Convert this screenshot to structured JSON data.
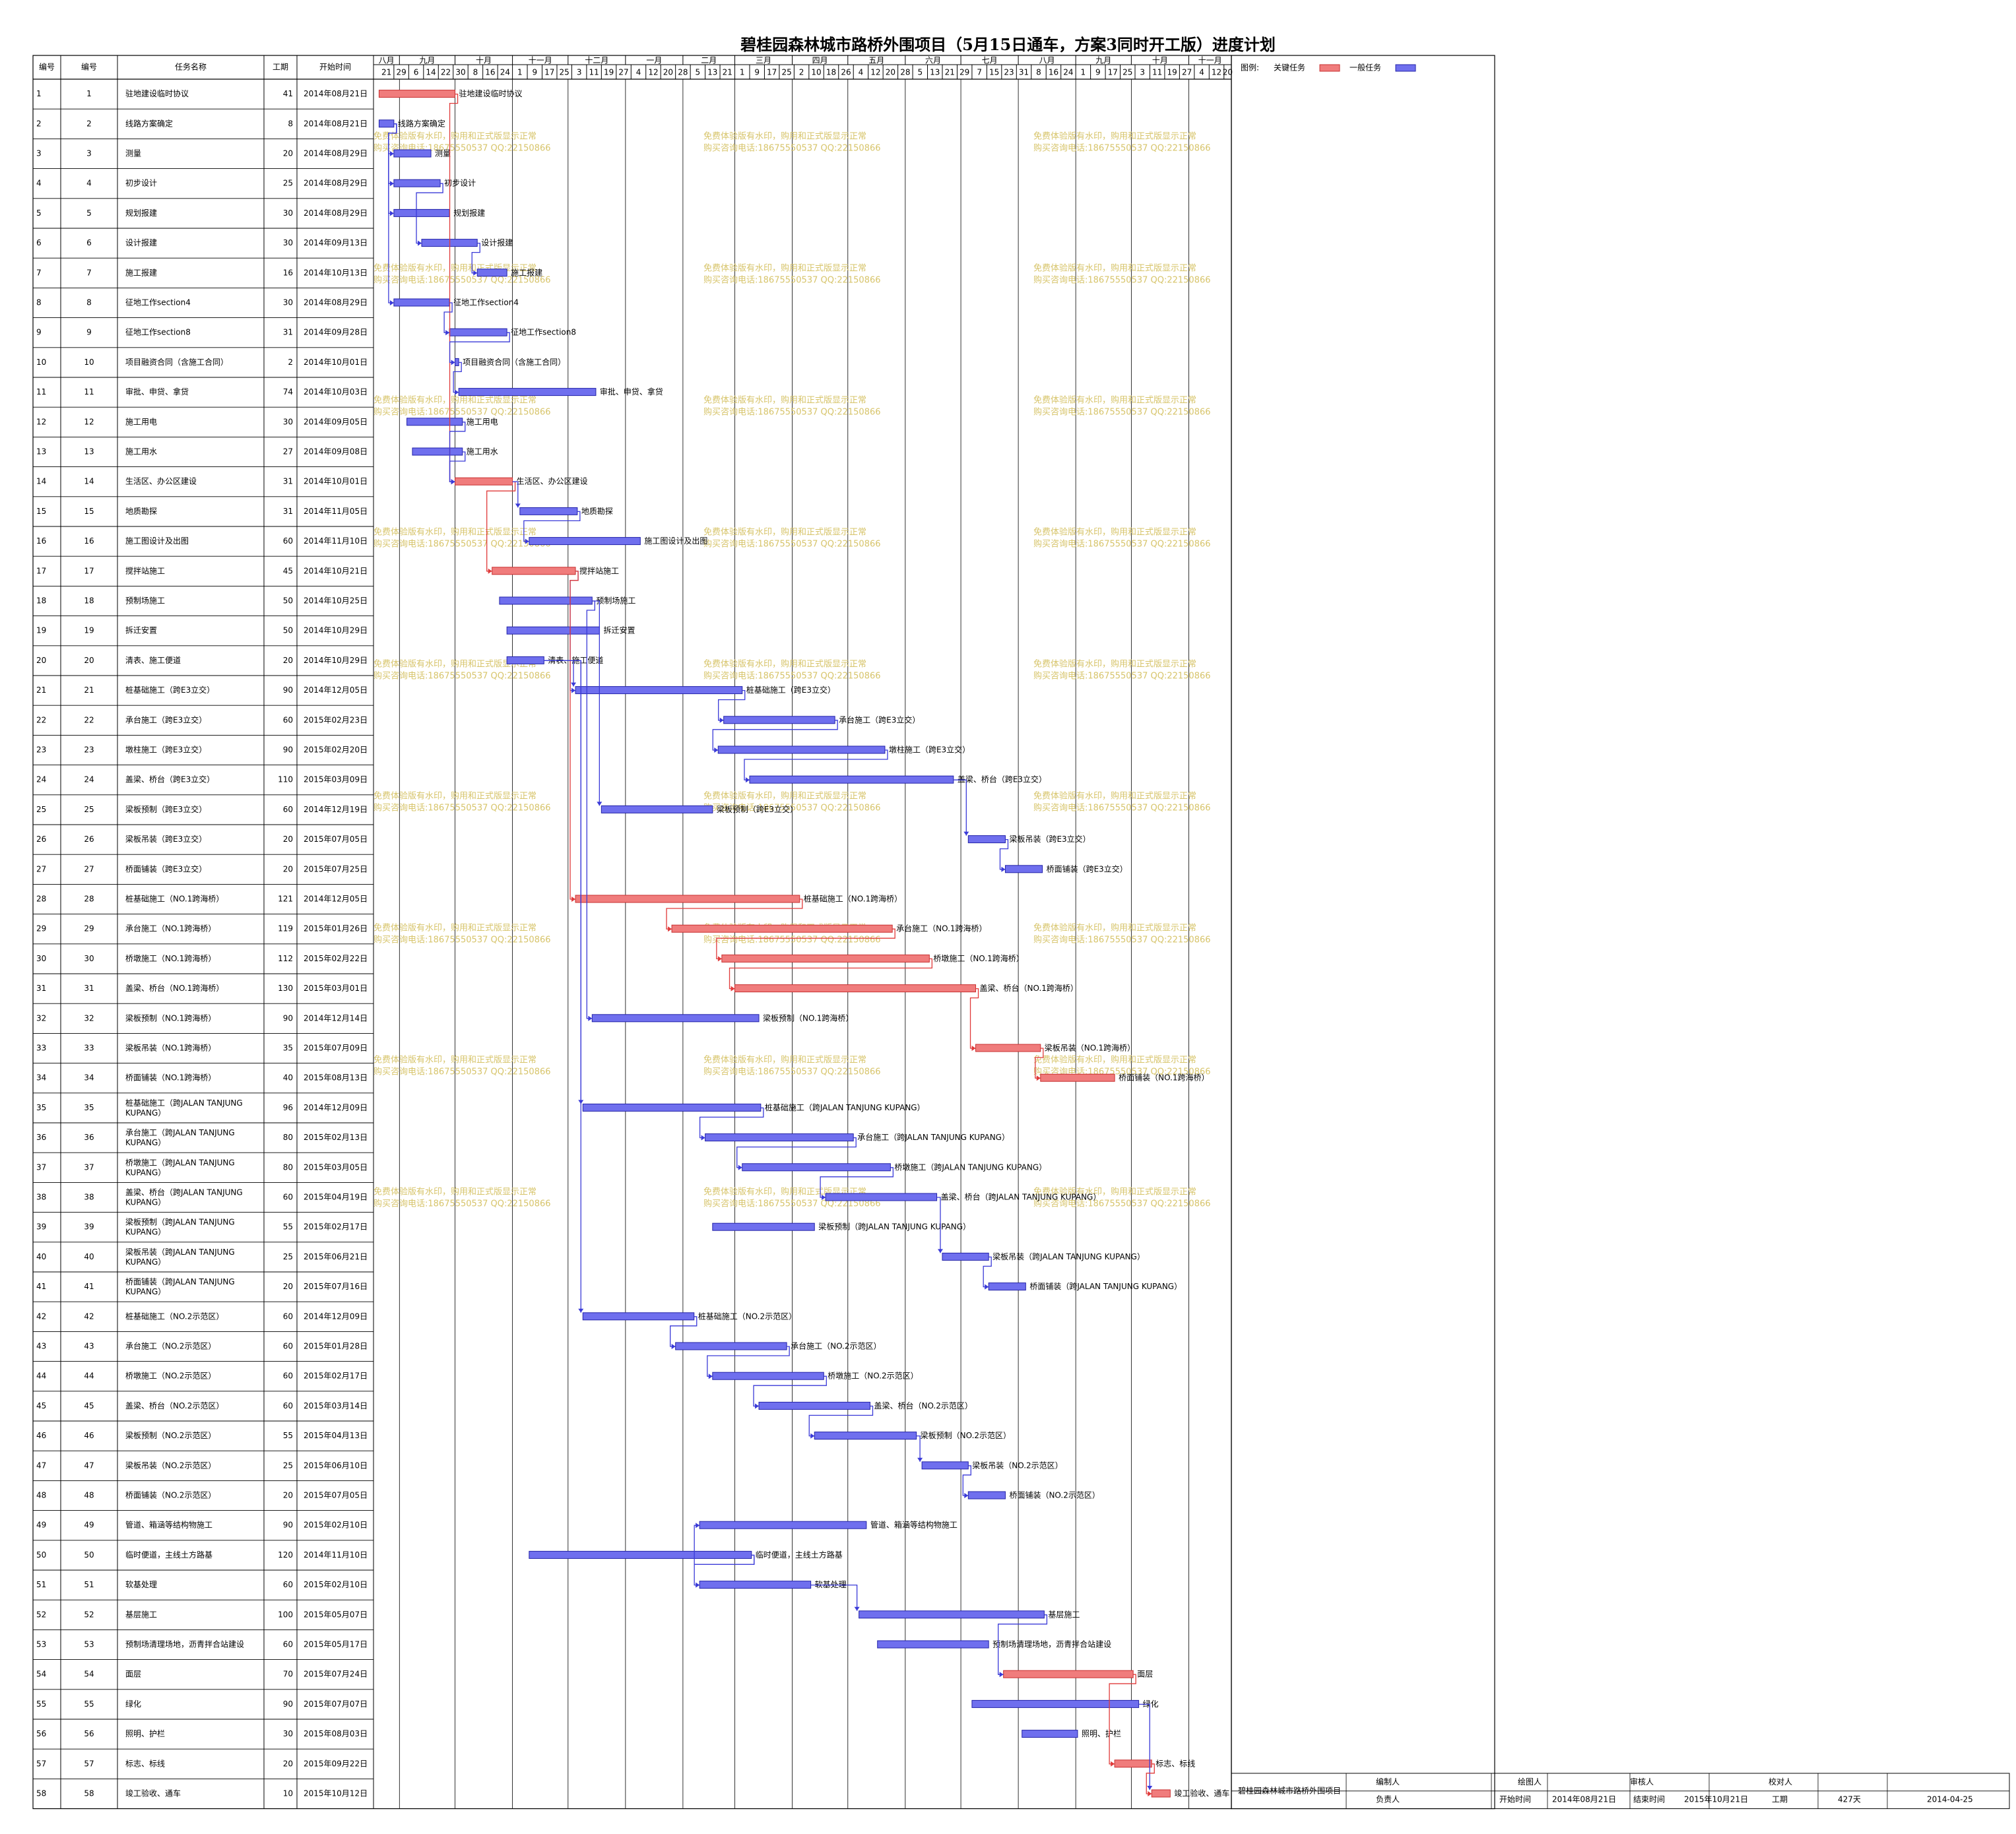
{
  "title": "碧桂园森林城市路桥外围项目（5月15日通车，方案3同时开工版）进度计划",
  "columns": [
    "编号",
    "编号",
    "任务名称",
    "工期",
    "开始时间"
  ],
  "legend": {
    "label": "图例:",
    "critical": "关键任务",
    "normal": "一般任务"
  },
  "colors": {
    "critical": "#f07c7c",
    "normal": "#6f6fee",
    "critical_stroke": "#c83030",
    "normal_stroke": "#2323a8",
    "link": "#3a3ad8",
    "critical_link": "#e03a3a",
    "watermark": "#d7c46a"
  },
  "watermark": {
    "line1": "免费体验版有水印，购用和正式版显示正常",
    "line2": "购买咨询电话:18675550537 QQ:22150866"
  },
  "footer": {
    "company": "碧桂园森林城市路桥外围项目",
    "editor_label": "编制人",
    "owner_label": "负责人",
    "drawer_label": "绘图人",
    "reviewer_label": "审核人",
    "checker_label": "校对人",
    "start_label": "开始时间",
    "start_value": "2014年08月21日",
    "end_label": "结束时间",
    "end_value": "2015年10月21日",
    "duration_label": "工期",
    "duration_value": "427天",
    "print_date": "2014-04-25"
  },
  "chart_data": {
    "type": "gantt",
    "timeline": {
      "start": "2014-08-18",
      "end": "2015-11-24",
      "months": [
        {
          "label": "八月",
          "start": "2014-08-18"
        },
        {
          "label": "九月",
          "start": "2014-09-01"
        },
        {
          "label": "十月",
          "start": "2014-10-01"
        },
        {
          "label": "十一月",
          "start": "2014-11-01"
        },
        {
          "label": "十二月",
          "start": "2014-12-01"
        },
        {
          "label": "一月",
          "start": "2015-01-01"
        },
        {
          "label": "二月",
          "start": "2015-02-01"
        },
        {
          "label": "三月",
          "start": "2015-03-01"
        },
        {
          "label": "四月",
          "start": "2015-04-01"
        },
        {
          "label": "五月",
          "start": "2015-05-01"
        },
        {
          "label": "六月",
          "start": "2015-06-01"
        },
        {
          "label": "七月",
          "start": "2015-07-01"
        },
        {
          "label": "八月",
          "start": "2015-08-01"
        },
        {
          "label": "九月",
          "start": "2015-09-01"
        },
        {
          "label": "十月",
          "start": "2015-10-01"
        },
        {
          "label": "十一月",
          "start": "2015-11-01"
        }
      ],
      "week_start": "2014-08-21",
      "week_step_days": 8,
      "week_labels": [
        "21",
        "29",
        "6",
        "14",
        "22",
        "30",
        "8",
        "16",
        "24",
        "1",
        "9",
        "17",
        "25",
        "3",
        "11",
        "19",
        "27",
        "4",
        "12",
        "20",
        "28",
        "5",
        "13",
        "21",
        "1",
        "9",
        "17",
        "25",
        "2",
        "10",
        "18",
        "26",
        "4",
        "12",
        "20",
        "28",
        "5",
        "13",
        "21",
        "29",
        "7",
        "15",
        "23",
        "31",
        "8",
        "16",
        "24",
        "1",
        "9",
        "17",
        "25",
        "3",
        "11",
        "19",
        "27",
        "4",
        "12",
        "20"
      ]
    },
    "tasks": [
      {
        "id": "1",
        "name": "驻地建设临时协议",
        "duration": 41,
        "start": "2014-08-21",
        "start_label": "2014年08月21日",
        "critical": true
      },
      {
        "id": "2",
        "name": "线路方案确定",
        "duration": 8,
        "start": "2014-08-21",
        "start_label": "2014年08月21日",
        "critical": false
      },
      {
        "id": "3",
        "name": "测量",
        "duration": 20,
        "start": "2014-08-29",
        "start_label": "2014年08月29日",
        "critical": false
      },
      {
        "id": "4",
        "name": "初步设计",
        "duration": 25,
        "start": "2014-08-29",
        "start_label": "2014年08月29日",
        "critical": false
      },
      {
        "id": "5",
        "name": "规划报建",
        "duration": 30,
        "start": "2014-08-29",
        "start_label": "2014年08月29日",
        "critical": false
      },
      {
        "id": "6",
        "name": "设计报建",
        "duration": 30,
        "start": "2014-09-13",
        "start_label": "2014年09月13日",
        "critical": false
      },
      {
        "id": "7",
        "name": "施工报建",
        "duration": 16,
        "start": "2014-10-13",
        "start_label": "2014年10月13日",
        "critical": false
      },
      {
        "id": "8",
        "name": "征地工作section4",
        "duration": 30,
        "start": "2014-08-29",
        "start_label": "2014年08月29日",
        "critical": false
      },
      {
        "id": "9",
        "name": "征地工作section8",
        "duration": 31,
        "start": "2014-09-28",
        "start_label": "2014年09月28日",
        "critical": false
      },
      {
        "id": "10",
        "name": "项目融资合同（含施工合同）",
        "duration": 2,
        "start": "2014-10-01",
        "start_label": "2014年10月01日",
        "critical": false
      },
      {
        "id": "11",
        "name": "审批、申贷、拿贷",
        "duration": 74,
        "start": "2014-10-03",
        "start_label": "2014年10月03日",
        "critical": false
      },
      {
        "id": "12",
        "name": "施工用电",
        "duration": 30,
        "start": "2014-09-05",
        "start_label": "2014年09月05日",
        "critical": false
      },
      {
        "id": "13",
        "name": "施工用水",
        "duration": 27,
        "start": "2014-09-08",
        "start_label": "2014年09月08日",
        "critical": false
      },
      {
        "id": "14",
        "name": "生活区、办公区建设",
        "duration": 31,
        "start": "2014-10-01",
        "start_label": "2014年10月01日",
        "critical": true
      },
      {
        "id": "15",
        "name": "地质勘探",
        "duration": 31,
        "start": "2014-11-05",
        "start_label": "2014年11月05日",
        "critical": false
      },
      {
        "id": "16",
        "name": "施工图设计及出图",
        "duration": 60,
        "start": "2014-11-10",
        "start_label": "2014年11月10日",
        "critical": false
      },
      {
        "id": "17",
        "name": "搅拌站施工",
        "duration": 45,
        "start": "2014-10-21",
        "start_label": "2014年10月21日",
        "critical": true
      },
      {
        "id": "18",
        "name": "预制场施工",
        "duration": 50,
        "start": "2014-10-25",
        "start_label": "2014年10月25日",
        "critical": false
      },
      {
        "id": "19",
        "name": "拆迁安置",
        "duration": 50,
        "start": "2014-10-29",
        "start_label": "2014年10月29日",
        "critical": false
      },
      {
        "id": "20",
        "name": "清表、施工便道",
        "duration": 20,
        "start": "2014-10-29",
        "start_label": "2014年10月29日",
        "critical": false
      },
      {
        "id": "21",
        "name": "桩基础施工（跨E3立交）",
        "duration": 90,
        "start": "2014-12-05",
        "start_label": "2014年12月05日",
        "critical": false
      },
      {
        "id": "22",
        "name": "承台施工（跨E3立交）",
        "duration": 60,
        "start": "2015-02-23",
        "start_label": "2015年02月23日",
        "critical": false
      },
      {
        "id": "23",
        "name": "墩柱施工（跨E3立交）",
        "duration": 90,
        "start": "2015-02-20",
        "start_label": "2015年02月20日",
        "critical": false
      },
      {
        "id": "24",
        "name": "盖梁、桥台（跨E3立交）",
        "duration": 110,
        "start": "2015-03-09",
        "start_label": "2015年03月09日",
        "critical": false
      },
      {
        "id": "25",
        "name": "梁板预制（跨E3立交）",
        "duration": 60,
        "start": "2014-12-19",
        "start_label": "2014年12月19日",
        "critical": false
      },
      {
        "id": "26",
        "name": "梁板吊装（跨E3立交）",
        "duration": 20,
        "start": "2015-07-05",
        "start_label": "2015年07月05日",
        "critical": false
      },
      {
        "id": "27",
        "name": "桥面铺装（跨E3立交）",
        "duration": 20,
        "start": "2015-07-25",
        "start_label": "2015年07月25日",
        "critical": false
      },
      {
        "id": "28",
        "name": "桩基础施工（NO.1跨海桥）",
        "duration": 121,
        "start": "2014-12-05",
        "start_label": "2014年12月05日",
        "critical": true
      },
      {
        "id": "29",
        "name": "承台施工（NO.1跨海桥）",
        "duration": 119,
        "start": "2015-01-26",
        "start_label": "2015年01月26日",
        "critical": true
      },
      {
        "id": "30",
        "name": "桥墩施工（NO.1跨海桥）",
        "duration": 112,
        "start": "2015-02-22",
        "start_label": "2015年02月22日",
        "critical": true
      },
      {
        "id": "31",
        "name": "盖梁、桥台（NO.1跨海桥）",
        "duration": 130,
        "start": "2015-03-01",
        "start_label": "2015年03月01日",
        "critical": true
      },
      {
        "id": "32",
        "name": "梁板预制（NO.1跨海桥）",
        "duration": 90,
        "start": "2014-12-14",
        "start_label": "2014年12月14日",
        "critical": false
      },
      {
        "id": "33",
        "name": "梁板吊装（NO.1跨海桥）",
        "duration": 35,
        "start": "2015-07-09",
        "start_label": "2015年07月09日",
        "critical": true
      },
      {
        "id": "34",
        "name": "桥面铺装（NO.1跨海桥）",
        "duration": 40,
        "start": "2015-08-13",
        "start_label": "2015年08月13日",
        "critical": true
      },
      {
        "id": "35",
        "name": "桩基础施工（跨JALAN TANJUNG KUPANG）",
        "duration": 96,
        "start": "2014-12-09",
        "start_label": "2014年12月09日",
        "critical": false
      },
      {
        "id": "36",
        "name": "承台施工（跨JALAN TANJUNG KUPANG）",
        "duration": 80,
        "start": "2015-02-13",
        "start_label": "2015年02月13日",
        "critical": false
      },
      {
        "id": "37",
        "name": "桥墩施工（跨JALAN TANJUNG KUPANG）",
        "duration": 80,
        "start": "2015-03-05",
        "start_label": "2015年03月05日",
        "critical": false
      },
      {
        "id": "38",
        "name": "盖梁、桥台（跨JALAN TANJUNG KUPANG）",
        "duration": 60,
        "start": "2015-04-19",
        "start_label": "2015年04月19日",
        "critical": false
      },
      {
        "id": "39",
        "name": "梁板预制（跨JALAN TANJUNG KUPANG）",
        "duration": 55,
        "start": "2015-02-17",
        "start_label": "2015年02月17日",
        "critical": false
      },
      {
        "id": "40",
        "name": "梁板吊装（跨JALAN TANJUNG KUPANG）",
        "duration": 25,
        "start": "2015-06-21",
        "start_label": "2015年06月21日",
        "critical": false
      },
      {
        "id": "41",
        "name": "桥面铺装（跨JALAN TANJUNG KUPANG）",
        "duration": 20,
        "start": "2015-07-16",
        "start_label": "2015年07月16日",
        "critical": false
      },
      {
        "id": "42",
        "name": "桩基础施工（NO.2示范区）",
        "duration": 60,
        "start": "2014-12-09",
        "start_label": "2014年12月09日",
        "critical": false
      },
      {
        "id": "43",
        "name": "承台施工（NO.2示范区）",
        "duration": 60,
        "start": "2015-01-28",
        "start_label": "2015年01月28日",
        "critical": false
      },
      {
        "id": "44",
        "name": "桥墩施工（NO.2示范区）",
        "duration": 60,
        "start": "2015-02-17",
        "start_label": "2015年02月17日",
        "critical": false
      },
      {
        "id": "45",
        "name": "盖梁、桥台（NO.2示范区）",
        "duration": 60,
        "start": "2015-03-14",
        "start_label": "2015年03月14日",
        "critical": false
      },
      {
        "id": "46",
        "name": "梁板预制（NO.2示范区）",
        "duration": 55,
        "start": "2015-04-13",
        "start_label": "2015年04月13日",
        "critical": false
      },
      {
        "id": "47",
        "name": "梁板吊装（NO.2示范区）",
        "duration": 25,
        "start": "2015-06-10",
        "start_label": "2015年06月10日",
        "critical": false
      },
      {
        "id": "48",
        "name": "桥面铺装（NO.2示范区）",
        "duration": 20,
        "start": "2015-07-05",
        "start_label": "2015年07月05日",
        "critical": false
      },
      {
        "id": "49",
        "name": "管道、箱涵等结构物施工",
        "duration": 90,
        "start": "2015-02-10",
        "start_label": "2015年02月10日",
        "critical": false
      },
      {
        "id": "50",
        "name": "临时便道，主线土方路基",
        "duration": 120,
        "start": "2014-11-10",
        "start_label": "2014年11月10日",
        "critical": false
      },
      {
        "id": "51",
        "name": "软基处理",
        "duration": 60,
        "start": "2015-02-10",
        "start_label": "2015年02月10日",
        "critical": false
      },
      {
        "id": "52",
        "name": "基层施工",
        "duration": 100,
        "start": "2015-05-07",
        "start_label": "2015年05月07日",
        "critical": false
      },
      {
        "id": "53",
        "name": "预制场清理场地，沥青拌合站建设",
        "duration": 60,
        "start": "2015-05-17",
        "start_label": "2015年05月17日",
        "critical": false
      },
      {
        "id": "54",
        "name": "面层",
        "duration": 70,
        "start": "2015-07-24",
        "start_label": "2015年07月24日",
        "critical": true
      },
      {
        "id": "55",
        "name": "绿化",
        "duration": 90,
        "start": "2015-07-07",
        "start_label": "2015年07月07日",
        "critical": false
      },
      {
        "id": "56",
        "name": "照明、护栏",
        "duration": 30,
        "start": "2015-08-03",
        "start_label": "2015年08月03日",
        "critical": false
      },
      {
        "id": "57",
        "name": "标志、标线",
        "duration": 20,
        "start": "2015-09-22",
        "start_label": "2015年09月22日",
        "critical": true
      },
      {
        "id": "58",
        "name": "竣工验收、通车",
        "duration": 10,
        "start": "2015-10-12",
        "start_label": "2015年10月12日",
        "critical": true
      }
    ],
    "links": [
      [
        "1",
        "14"
      ],
      [
        "2",
        "3"
      ],
      [
        "2",
        "4"
      ],
      [
        "2",
        "5"
      ],
      [
        "2",
        "8"
      ],
      [
        "4",
        "6"
      ],
      [
        "6",
        "7"
      ],
      [
        "8",
        "9"
      ],
      [
        "9",
        "10"
      ],
      [
        "10",
        "11"
      ],
      [
        "12",
        "14"
      ],
      [
        "13",
        "14"
      ],
      [
        "14",
        "17"
      ],
      [
        "14",
        "15"
      ],
      [
        "15",
        "16"
      ],
      [
        "17",
        "21"
      ],
      [
        "17",
        "28"
      ],
      [
        "18",
        "25"
      ],
      [
        "18",
        "32"
      ],
      [
        "20",
        "21"
      ],
      [
        "20",
        "35"
      ],
      [
        "20",
        "42"
      ],
      [
        "21",
        "22"
      ],
      [
        "22",
        "23"
      ],
      [
        "23",
        "24"
      ],
      [
        "24",
        "26"
      ],
      [
        "26",
        "27"
      ],
      [
        "28",
        "29"
      ],
      [
        "29",
        "30"
      ],
      [
        "30",
        "31"
      ],
      [
        "31",
        "33"
      ],
      [
        "33",
        "34"
      ],
      [
        "35",
        "36"
      ],
      [
        "36",
        "37"
      ],
      [
        "37",
        "38"
      ],
      [
        "38",
        "40"
      ],
      [
        "40",
        "41"
      ],
      [
        "42",
        "43"
      ],
      [
        "43",
        "44"
      ],
      [
        "44",
        "45"
      ],
      [
        "45",
        "46"
      ],
      [
        "46",
        "47"
      ],
      [
        "47",
        "48"
      ],
      [
        "50",
        "49"
      ],
      [
        "50",
        "51"
      ],
      [
        "51",
        "52"
      ],
      [
        "52",
        "54"
      ],
      [
        "54",
        "57"
      ],
      [
        "55",
        "58"
      ],
      [
        "57",
        "58"
      ]
    ]
  }
}
